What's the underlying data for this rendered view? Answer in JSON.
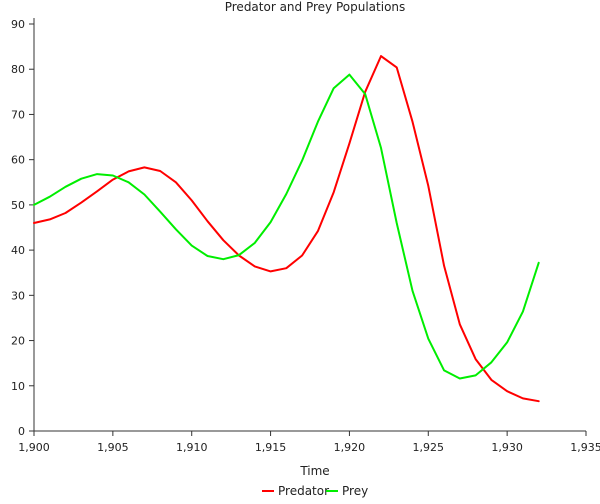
{
  "chart_data": {
    "type": "line",
    "title": "Predator and Prey Populations",
    "xlabel": "Time",
    "ylabel": "",
    "xlim": [
      1900,
      1935
    ],
    "ylim": [
      0,
      90
    ],
    "x_ticks": [
      "1,900",
      "1,905",
      "1,910",
      "1,915",
      "1,920",
      "1,925",
      "1,930",
      "1,935"
    ],
    "y_ticks": [
      "0",
      "10",
      "20",
      "30",
      "40",
      "50",
      "60",
      "70",
      "80",
      "90"
    ],
    "x": [
      1900,
      1901,
      1902,
      1903,
      1904,
      1905,
      1906,
      1907,
      1908,
      1909,
      1910,
      1911,
      1912,
      1913,
      1914,
      1915,
      1916,
      1917,
      1918,
      1919,
      1920,
      1921,
      1922,
      1923,
      1924,
      1925,
      1926,
      1927,
      1928,
      1929,
      1930,
      1931,
      1932
    ],
    "grid": false,
    "legend": "bottom-center",
    "series": [
      {
        "name": "Predator",
        "color": "#ff0000",
        "values": [
          46.0,
          46.8,
          48.2,
          50.5,
          53.0,
          55.6,
          57.4,
          58.3,
          57.5,
          55.0,
          51.0,
          46.4,
          42.2,
          38.8,
          36.4,
          35.3,
          36.0,
          38.8,
          44.2,
          52.8,
          63.6,
          75.0,
          82.9,
          80.4,
          68.4,
          54.2,
          36.5,
          23.6,
          15.9,
          11.3,
          8.8,
          7.2,
          6.6
        ]
      },
      {
        "name": "Prey",
        "color": "#00ee00",
        "values": [
          50.0,
          51.8,
          54.0,
          55.8,
          56.8,
          56.5,
          55.0,
          52.3,
          48.5,
          44.6,
          41.0,
          38.7,
          38.0,
          38.9,
          41.6,
          46.2,
          52.4,
          59.8,
          68.4,
          75.8,
          78.8,
          74.5,
          62.6,
          46.0,
          31.0,
          20.4,
          13.4,
          11.6,
          12.3,
          15.2,
          19.6,
          26.4,
          37.2
        ]
      }
    ]
  }
}
